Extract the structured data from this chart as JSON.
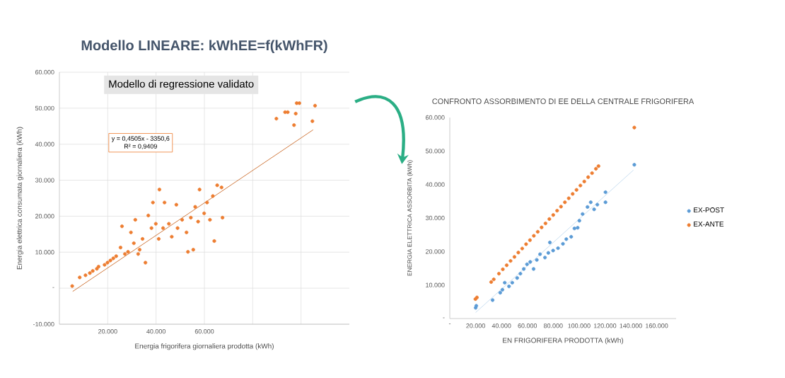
{
  "chart_data": [
    {
      "type": "scatter",
      "title": "Modello LINEARE: kWhEE=f(kWhFR)",
      "subtitle": "Modello di regressione validato",
      "xlabel": "Energia frigorifera giornaliera prodotta (kWh)",
      "ylabel": "Energia elettrica consumata giornaliera (kWh)",
      "annotations": [
        "y = 0,4505x - 3350,6",
        "R² = 0,9409"
      ],
      "xlim": [
        0,
        120000
      ],
      "ylim": [
        -10000,
        60000
      ],
      "xticks": [
        {
          "value": 20000,
          "label": "20.000"
        },
        {
          "value": 40000,
          "label": "40.000"
        },
        {
          "value": 60000,
          "label": "60.000"
        },
        {
          "value": 80000,
          "label": null
        },
        {
          "value": 100000,
          "label": null
        }
      ],
      "yticks": [
        {
          "value": -10000,
          "label": "-10.000"
        },
        {
          "value": 0,
          "label": "-"
        },
        {
          "value": 10000,
          "label": "10.000"
        },
        {
          "value": 20000,
          "label": "20.000"
        },
        {
          "value": 30000,
          "label": "30.000"
        },
        {
          "value": 40000,
          "label": "40.000"
        },
        {
          "value": 50000,
          "label": "50.000"
        },
        {
          "value": 60000,
          "label": "60.000"
        }
      ],
      "grid": true,
      "series": [
        {
          "color": "#ed7d31",
          "x": [
            5300,
            8400,
            10800,
            12600,
            13800,
            15500,
            16200,
            18700,
            19900,
            21100,
            22300,
            23500,
            25300,
            25900,
            27100,
            28400,
            29600,
            30800,
            31400,
            32600,
            33200,
            34400,
            35600,
            36800,
            38100,
            38700,
            39900,
            41100,
            41400,
            42900,
            43500,
            45300,
            46500,
            48400,
            48900,
            50800,
            52600,
            53200,
            54400,
            55400,
            56200,
            57400,
            58000,
            59900,
            61100,
            62300,
            63500,
            64100,
            65300,
            67100,
            67500,
            89800,
            93400,
            94500,
            97100,
            97800,
            98200,
            99300,
            104700,
            105800
          ],
          "values": [
            600,
            3000,
            3600,
            4200,
            4800,
            5400,
            6000,
            6500,
            7100,
            7700,
            8300,
            8900,
            11300,
            17200,
            9500,
            10100,
            15500,
            12500,
            19000,
            9500,
            10700,
            13700,
            7100,
            20200,
            16700,
            23800,
            17900,
            13700,
            27400,
            16700,
            23800,
            17900,
            14300,
            23200,
            16700,
            19000,
            15500,
            10100,
            19600,
            10700,
            22600,
            18500,
            27400,
            20800,
            23800,
            19000,
            25600,
            13100,
            28600,
            28000,
            19600,
            47100,
            48900,
            48900,
            45300,
            48500,
            51400,
            51400,
            46400,
            50700
          ]
        },
        {
          "type": "line",
          "color": "#c55a11",
          "x": [
            5500,
            105000
          ],
          "values": [
            -900,
            44000
          ]
        }
      ]
    },
    {
      "type": "scatter",
      "title": "CONFRONTO ASSORBIMENTO DI EE DELLA CENTRALE FRIGORIFERA",
      "xlabel": "EN FRIGORIFERA PRODOTTA (kWh)",
      "ylabel": "ENERGIA ELETTRICA ASSORBITA (kWh)",
      "xlim": [
        0,
        175000
      ],
      "ylim": [
        0,
        60000
      ],
      "xticks": [
        {
          "value": 0,
          "label": "-"
        },
        {
          "value": 20000,
          "label": "20.000"
        },
        {
          "value": 40000,
          "label": "40.000"
        },
        {
          "value": 60000,
          "label": "60.000"
        },
        {
          "value": 80000,
          "label": "80.000"
        },
        {
          "value": 100000,
          "label": "100.000"
        },
        {
          "value": 120000,
          "label": "120.000"
        },
        {
          "value": 140000,
          "label": "140.000"
        },
        {
          "value": 160000,
          "label": "160.000"
        }
      ],
      "yticks": [
        {
          "value": 0,
          "label": "-"
        },
        {
          "value": 10000,
          "label": "10.000"
        },
        {
          "value": 20000,
          "label": "20.000"
        },
        {
          "value": 30000,
          "label": "30.000"
        },
        {
          "value": 40000,
          "label": "40.000"
        },
        {
          "value": 50000,
          "label": "50.000"
        },
        {
          "value": 60000,
          "label": "60.000"
        }
      ],
      "legend": "right",
      "series": [
        {
          "name": "EX-POST",
          "color": "#5b9bd5",
          "x": [
            20000,
            20500,
            33100,
            39000,
            40700,
            42500,
            45800,
            48300,
            52100,
            54600,
            57200,
            59700,
            62200,
            64800,
            67300,
            69800,
            73600,
            76200,
            77400,
            79900,
            83700,
            87500,
            90100,
            93900,
            96400,
            98900,
            100200,
            102700,
            106500,
            109000,
            111600,
            114100,
            120400,
            120400,
            142700
          ],
          "values": [
            3200,
            3800,
            5500,
            7700,
            8600,
            10700,
            9600,
            10700,
            12100,
            13400,
            14800,
            16200,
            16900,
            14800,
            17500,
            19200,
            18200,
            19600,
            22700,
            20300,
            21000,
            22300,
            23700,
            24400,
            26900,
            27100,
            29200,
            31200,
            33300,
            34700,
            32600,
            34000,
            37700,
            34700,
            45900
          ]
        },
        {
          "name": "EX-ANTE",
          "color": "#ed7d31",
          "x": [
            19800,
            21000,
            32000,
            34000,
            38000,
            41000,
            44000,
            47000,
            50000,
            53000,
            56000,
            59000,
            62000,
            65000,
            68000,
            71000,
            74000,
            77000,
            80000,
            83000,
            86000,
            89000,
            92000,
            95000,
            98000,
            101000,
            104000,
            107000,
            110000,
            113000,
            115000,
            142700
          ],
          "values": [
            5800,
            6300,
            10900,
            11700,
            13400,
            14700,
            15900,
            17200,
            18400,
            19700,
            20900,
            22200,
            23400,
            24700,
            25900,
            27200,
            28400,
            29700,
            30900,
            32200,
            33400,
            34700,
            35900,
            37200,
            38400,
            39700,
            40900,
            42200,
            43400,
            44700,
            45500,
            57000
          ]
        },
        {
          "type": "line",
          "color": "#bdd7ee",
          "x": [
            20000,
            142000
          ],
          "values": [
            1800,
            44300
          ]
        }
      ]
    }
  ]
}
